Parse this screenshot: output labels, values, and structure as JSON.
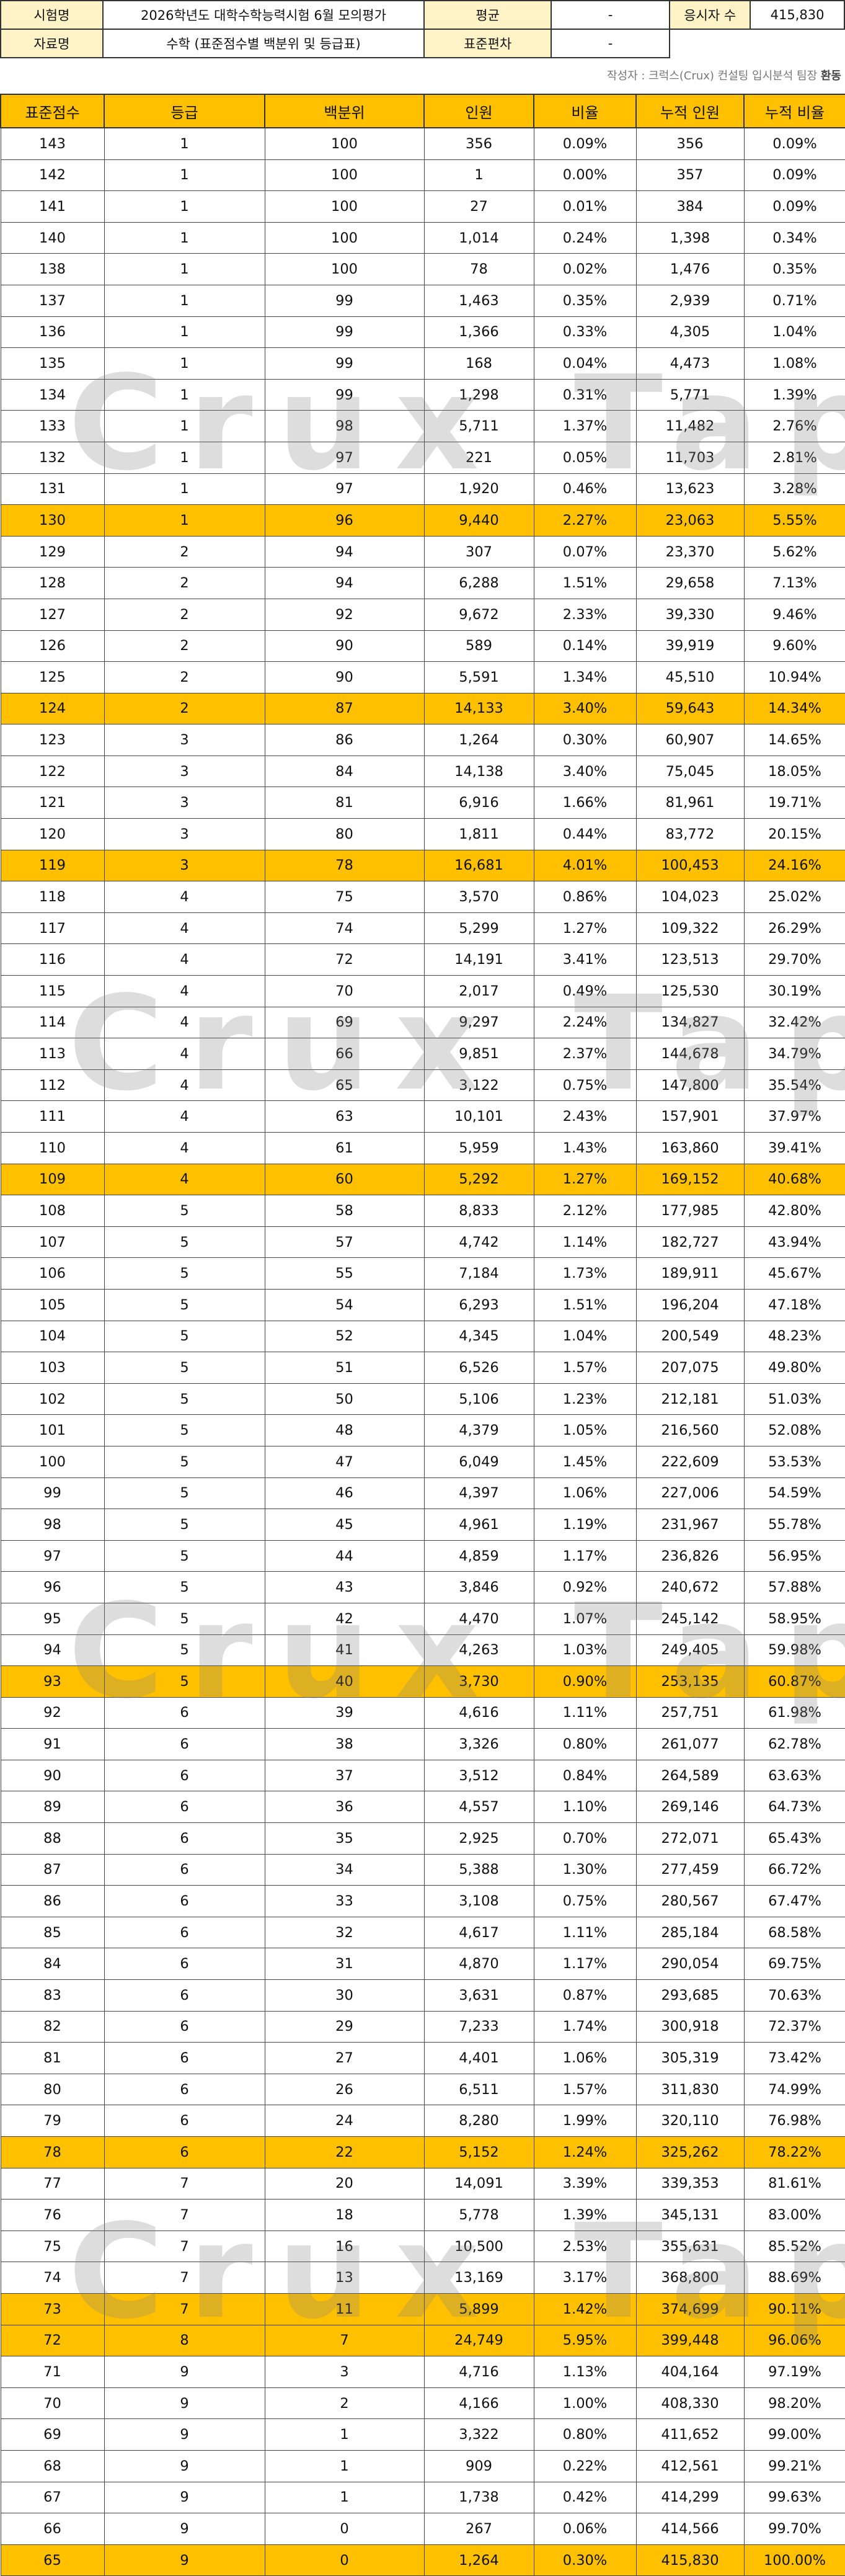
{
  "info": {
    "exam_label": "시험명",
    "exam_value": "2026학년도 대학수학능력시험 6월 모의평가",
    "avg_label": "평균",
    "avg_value": "-",
    "takers_label": "응시자 수",
    "takers_value": "415,830",
    "material_label": "자료명",
    "material_value": "수학 (표준점수별 백분위 및 등급표)",
    "sd_label": "표준편차",
    "sd_value": "-"
  },
  "credit": {
    "prefix": "작성자 : 크럭스(Crux) 컨설팅 입시분석 팀장",
    "name": "환동"
  },
  "watermark": "Crux Tape",
  "table": {
    "headers": [
      "표준점수",
      "등급",
      "백분위",
      "인원",
      "비율",
      "누적 인원",
      "누적 비율"
    ],
    "rows": [
      [
        "143",
        "1",
        "100",
        "356",
        "0.09%",
        "356",
        "0.09%"
      ],
      [
        "142",
        "1",
        "100",
        "1",
        "0.00%",
        "357",
        "0.09%"
      ],
      [
        "141",
        "1",
        "100",
        "27",
        "0.01%",
        "384",
        "0.09%"
      ],
      [
        "140",
        "1",
        "100",
        "1,014",
        "0.24%",
        "1,398",
        "0.34%"
      ],
      [
        "138",
        "1",
        "100",
        "78",
        "0.02%",
        "1,476",
        "0.35%"
      ],
      [
        "137",
        "1",
        "99",
        "1,463",
        "0.35%",
        "2,939",
        "0.71%"
      ],
      [
        "136",
        "1",
        "99",
        "1,366",
        "0.33%",
        "4,305",
        "1.04%"
      ],
      [
        "135",
        "1",
        "99",
        "168",
        "0.04%",
        "4,473",
        "1.08%"
      ],
      [
        "134",
        "1",
        "99",
        "1,298",
        "0.31%",
        "5,771",
        "1.39%"
      ],
      [
        "133",
        "1",
        "98",
        "5,711",
        "1.37%",
        "11,482",
        "2.76%"
      ],
      [
        "132",
        "1",
        "97",
        "221",
        "0.05%",
        "11,703",
        "2.81%"
      ],
      [
        "131",
        "1",
        "97",
        "1,920",
        "0.46%",
        "13,623",
        "3.28%"
      ],
      [
        "130",
        "1",
        "96",
        "9,440",
        "2.27%",
        "23,063",
        "5.55%"
      ],
      [
        "129",
        "2",
        "94",
        "307",
        "0.07%",
        "23,370",
        "5.62%"
      ],
      [
        "128",
        "2",
        "94",
        "6,288",
        "1.51%",
        "29,658",
        "7.13%"
      ],
      [
        "127",
        "2",
        "92",
        "9,672",
        "2.33%",
        "39,330",
        "9.46%"
      ],
      [
        "126",
        "2",
        "90",
        "589",
        "0.14%",
        "39,919",
        "9.60%"
      ],
      [
        "125",
        "2",
        "90",
        "5,591",
        "1.34%",
        "45,510",
        "10.94%"
      ],
      [
        "124",
        "2",
        "87",
        "14,133",
        "3.40%",
        "59,643",
        "14.34%"
      ],
      [
        "123",
        "3",
        "86",
        "1,264",
        "0.30%",
        "60,907",
        "14.65%"
      ],
      [
        "122",
        "3",
        "84",
        "14,138",
        "3.40%",
        "75,045",
        "18.05%"
      ],
      [
        "121",
        "3",
        "81",
        "6,916",
        "1.66%",
        "81,961",
        "19.71%"
      ],
      [
        "120",
        "3",
        "80",
        "1,811",
        "0.44%",
        "83,772",
        "20.15%"
      ],
      [
        "119",
        "3",
        "78",
        "16,681",
        "4.01%",
        "100,453",
        "24.16%"
      ],
      [
        "118",
        "4",
        "75",
        "3,570",
        "0.86%",
        "104,023",
        "25.02%"
      ],
      [
        "117",
        "4",
        "74",
        "5,299",
        "1.27%",
        "109,322",
        "26.29%"
      ],
      [
        "116",
        "4",
        "72",
        "14,191",
        "3.41%",
        "123,513",
        "29.70%"
      ],
      [
        "115",
        "4",
        "70",
        "2,017",
        "0.49%",
        "125,530",
        "30.19%"
      ],
      [
        "114",
        "4",
        "69",
        "9,297",
        "2.24%",
        "134,827",
        "32.42%"
      ],
      [
        "113",
        "4",
        "66",
        "9,851",
        "2.37%",
        "144,678",
        "34.79%"
      ],
      [
        "112",
        "4",
        "65",
        "3,122",
        "0.75%",
        "147,800",
        "35.54%"
      ],
      [
        "111",
        "4",
        "63",
        "10,101",
        "2.43%",
        "157,901",
        "37.97%"
      ],
      [
        "110",
        "4",
        "61",
        "5,959",
        "1.43%",
        "163,860",
        "39.41%"
      ],
      [
        "109",
        "4",
        "60",
        "5,292",
        "1.27%",
        "169,152",
        "40.68%"
      ],
      [
        "108",
        "5",
        "58",
        "8,833",
        "2.12%",
        "177,985",
        "42.80%"
      ],
      [
        "107",
        "5",
        "57",
        "4,742",
        "1.14%",
        "182,727",
        "43.94%"
      ],
      [
        "106",
        "5",
        "55",
        "7,184",
        "1.73%",
        "189,911",
        "45.67%"
      ],
      [
        "105",
        "5",
        "54",
        "6,293",
        "1.51%",
        "196,204",
        "47.18%"
      ],
      [
        "104",
        "5",
        "52",
        "4,345",
        "1.04%",
        "200,549",
        "48.23%"
      ],
      [
        "103",
        "5",
        "51",
        "6,526",
        "1.57%",
        "207,075",
        "49.80%"
      ],
      [
        "102",
        "5",
        "50",
        "5,106",
        "1.23%",
        "212,181",
        "51.03%"
      ],
      [
        "101",
        "5",
        "48",
        "4,379",
        "1.05%",
        "216,560",
        "52.08%"
      ],
      [
        "100",
        "5",
        "47",
        "6,049",
        "1.45%",
        "222,609",
        "53.53%"
      ],
      [
        "99",
        "5",
        "46",
        "4,397",
        "1.06%",
        "227,006",
        "54.59%"
      ],
      [
        "98",
        "5",
        "45",
        "4,961",
        "1.19%",
        "231,967",
        "55.78%"
      ],
      [
        "97",
        "5",
        "44",
        "4,859",
        "1.17%",
        "236,826",
        "56.95%"
      ],
      [
        "96",
        "5",
        "43",
        "3,846",
        "0.92%",
        "240,672",
        "57.88%"
      ],
      [
        "95",
        "5",
        "42",
        "4,470",
        "1.07%",
        "245,142",
        "58.95%"
      ],
      [
        "94",
        "5",
        "41",
        "4,263",
        "1.03%",
        "249,405",
        "59.98%"
      ],
      [
        "93",
        "5",
        "40",
        "3,730",
        "0.90%",
        "253,135",
        "60.87%"
      ],
      [
        "92",
        "6",
        "39",
        "4,616",
        "1.11%",
        "257,751",
        "61.98%"
      ],
      [
        "91",
        "6",
        "38",
        "3,326",
        "0.80%",
        "261,077",
        "62.78%"
      ],
      [
        "90",
        "6",
        "37",
        "3,512",
        "0.84%",
        "264,589",
        "63.63%"
      ],
      [
        "89",
        "6",
        "36",
        "4,557",
        "1.10%",
        "269,146",
        "64.73%"
      ],
      [
        "88",
        "6",
        "35",
        "2,925",
        "0.70%",
        "272,071",
        "65.43%"
      ],
      [
        "87",
        "6",
        "34",
        "5,388",
        "1.30%",
        "277,459",
        "66.72%"
      ],
      [
        "86",
        "6",
        "33",
        "3,108",
        "0.75%",
        "280,567",
        "67.47%"
      ],
      [
        "85",
        "6",
        "32",
        "4,617",
        "1.11%",
        "285,184",
        "68.58%"
      ],
      [
        "84",
        "6",
        "31",
        "4,870",
        "1.17%",
        "290,054",
        "69.75%"
      ],
      [
        "83",
        "6",
        "30",
        "3,631",
        "0.87%",
        "293,685",
        "70.63%"
      ],
      [
        "82",
        "6",
        "29",
        "7,233",
        "1.74%",
        "300,918",
        "72.37%"
      ],
      [
        "81",
        "6",
        "27",
        "4,401",
        "1.06%",
        "305,319",
        "73.42%"
      ],
      [
        "80",
        "6",
        "26",
        "6,511",
        "1.57%",
        "311,830",
        "74.99%"
      ],
      [
        "79",
        "6",
        "24",
        "8,280",
        "1.99%",
        "320,110",
        "76.98%"
      ],
      [
        "78",
        "6",
        "22",
        "5,152",
        "1.24%",
        "325,262",
        "78.22%"
      ],
      [
        "77",
        "7",
        "20",
        "14,091",
        "3.39%",
        "339,353",
        "81.61%"
      ],
      [
        "76",
        "7",
        "18",
        "5,778",
        "1.39%",
        "345,131",
        "83.00%"
      ],
      [
        "75",
        "7",
        "16",
        "10,500",
        "2.53%",
        "355,631",
        "85.52%"
      ],
      [
        "74",
        "7",
        "13",
        "13,169",
        "3.17%",
        "368,800",
        "88.69%"
      ],
      [
        "73",
        "7",
        "11",
        "5,899",
        "1.42%",
        "374,699",
        "90.11%"
      ],
      [
        "72",
        "8",
        "7",
        "24,749",
        "5.95%",
        "399,448",
        "96.06%"
      ],
      [
        "71",
        "9",
        "3",
        "4,716",
        "1.13%",
        "404,164",
        "97.19%"
      ],
      [
        "70",
        "9",
        "2",
        "4,166",
        "1.00%",
        "408,330",
        "98.20%"
      ],
      [
        "69",
        "9",
        "1",
        "3,322",
        "0.80%",
        "411,652",
        "99.00%"
      ],
      [
        "68",
        "9",
        "1",
        "909",
        "0.22%",
        "412,561",
        "99.21%"
      ],
      [
        "67",
        "9",
        "1",
        "1,738",
        "0.42%",
        "414,299",
        "99.63%"
      ],
      [
        "66",
        "9",
        "0",
        "267",
        "0.06%",
        "414,566",
        "99.70%"
      ],
      [
        "65",
        "9",
        "0",
        "1,264",
        "0.30%",
        "415,830",
        "100.00%"
      ]
    ],
    "highlighted_scores": [
      "130",
      "124",
      "119",
      "109",
      "93",
      "78",
      "73",
      "72"
    ],
    "highlight_color": "#ffc000",
    "label_cell_color": "#fef3c7"
  }
}
